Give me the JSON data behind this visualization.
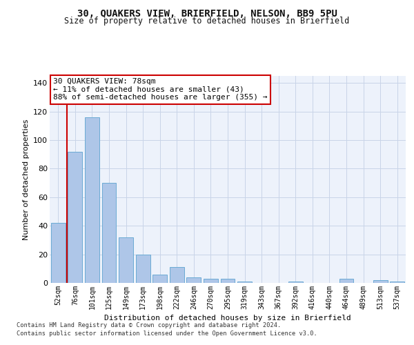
{
  "title": "30, QUAKERS VIEW, BRIERFIELD, NELSON, BB9 5PU",
  "subtitle": "Size of property relative to detached houses in Brierfield",
  "xlabel": "Distribution of detached houses by size in Brierfield",
  "ylabel": "Number of detached properties",
  "categories": [
    "52sqm",
    "76sqm",
    "101sqm",
    "125sqm",
    "149sqm",
    "173sqm",
    "198sqm",
    "222sqm",
    "246sqm",
    "270sqm",
    "295sqm",
    "319sqm",
    "343sqm",
    "367sqm",
    "392sqm",
    "416sqm",
    "440sqm",
    "464sqm",
    "489sqm",
    "513sqm",
    "537sqm"
  ],
  "values": [
    42,
    92,
    116,
    70,
    32,
    20,
    6,
    11,
    4,
    3,
    3,
    1,
    0,
    0,
    1,
    0,
    0,
    3,
    0,
    2,
    1
  ],
  "bar_color": "#aec6e8",
  "bar_edge_color": "#6aaad4",
  "ylim": [
    0,
    145
  ],
  "yticks": [
    0,
    20,
    40,
    60,
    80,
    100,
    120,
    140
  ],
  "annotation_text": "30 QUAKERS VIEW: 78sqm\n← 11% of detached houses are smaller (43)\n88% of semi-detached houses are larger (355) →",
  "annotation_box_color": "#ffffff",
  "annotation_box_edge_color": "#cc0000",
  "red_line_color": "#cc0000",
  "background_color": "#edf2fb",
  "grid_color": "#c8d4e8",
  "footer_line1": "Contains HM Land Registry data © Crown copyright and database right 2024.",
  "footer_line2": "Contains public sector information licensed under the Open Government Licence v3.0."
}
